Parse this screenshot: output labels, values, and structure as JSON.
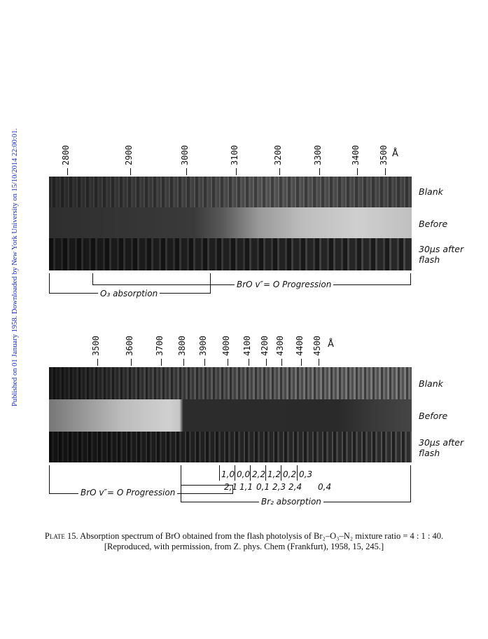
{
  "sidebar_text": "Published on 01 January 1958. Downloaded by New York University on 15/10/2014 22:00:01.",
  "top_panel": {
    "scale": [
      "2800",
      "2900",
      "3000",
      "3100",
      "3200",
      "3300",
      "3400",
      "3500"
    ],
    "unit": "Å",
    "strips": [
      "Blank",
      "Before",
      "30μs after flash"
    ],
    "brace_o3": "O₃ absorption",
    "brace_bro": "BrO v″= O Progression"
  },
  "bottom_panel": {
    "scale": [
      "3500",
      "3600",
      "3700",
      "3800",
      "3900",
      "4000",
      "4100",
      "4200",
      "4300",
      "4400",
      "4500"
    ],
    "unit": "Å",
    "strips": [
      "Blank",
      "Before",
      "30μs after flash"
    ],
    "bands_upper": [
      "1,0",
      "0,0",
      "2,2",
      "1,2",
      "0,2",
      "0,3"
    ],
    "bands_lower": [
      "2,1",
      "1,1",
      "0,1",
      "2,3",
      "2,4",
      "0,4"
    ],
    "brace_bro": "BrO v″= O Progression",
    "brace_br2": "Br₂ absorption"
  },
  "caption": {
    "plate": "Plate 15.",
    "line1": "Absorption spectrum of BrO obtained from the flash photolysis of Br₂–O₃–N₂ mixture ratio = 4 : 1 : 40.",
    "line2": "[Reproduced, with permission, from Z. phys. Chem (Frankfurt), 1958, 15, 245.]"
  }
}
